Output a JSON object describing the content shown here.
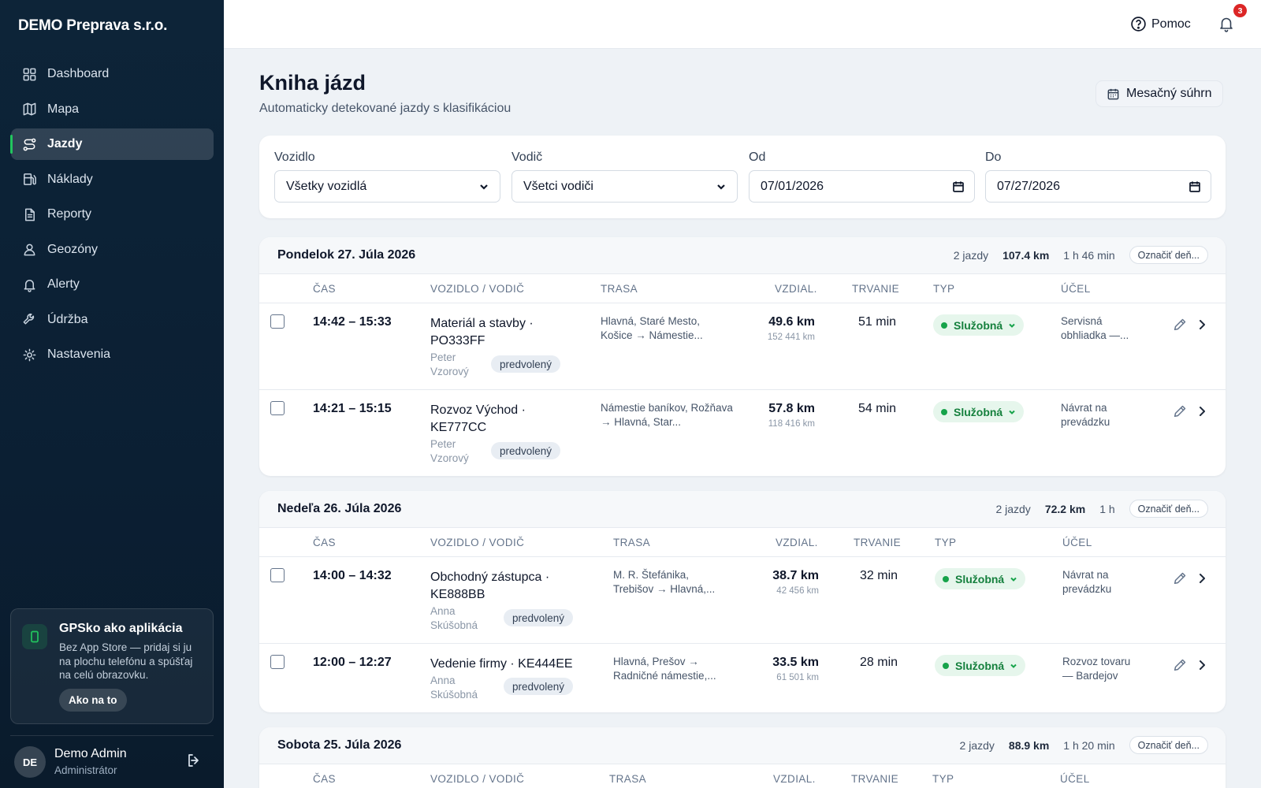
{
  "sidebar": {
    "brand": "DEMO Preprava s.r.o.",
    "items": [
      {
        "label": "Dashboard",
        "icon": "grid-icon"
      },
      {
        "label": "Mapa",
        "icon": "map-icon"
      },
      {
        "label": "Jazdy",
        "icon": "route-icon",
        "active": true
      },
      {
        "label": "Náklady",
        "icon": "fuel-icon"
      },
      {
        "label": "Reporty",
        "icon": "document-icon"
      },
      {
        "label": "Geozóny",
        "icon": "geofence-icon"
      },
      {
        "label": "Alerty",
        "icon": "bell-icon"
      },
      {
        "label": "Údržba",
        "icon": "wrench-icon"
      },
      {
        "label": "Nastavenia",
        "icon": "gear-icon"
      }
    ],
    "promo": {
      "title": "GPSko ako aplikácia",
      "text": "Bez App Store — pridaj si ju na plochu telefónu a spúšťaj na celú obrazovku.",
      "button": "Ako na to"
    },
    "user": {
      "initials": "DE",
      "name": "Demo Admin",
      "role": "Administrátor"
    }
  },
  "topbar": {
    "help": "Pomoc",
    "notifications": "3"
  },
  "page": {
    "title": "Kniha jázd",
    "subtitle": "Automaticky detekované jazdy s klasifikáciou",
    "summary_button": "Mesačný súhrn"
  },
  "filters": {
    "vehicle": {
      "label": "Vozidlo",
      "value": "Všetky vozidlá"
    },
    "driver": {
      "label": "Vodič",
      "value": "Všetci vodiči"
    },
    "from": {
      "label": "Od",
      "value": "07/01/2026"
    },
    "to": {
      "label": "Do",
      "value": "07/27/2026"
    }
  },
  "columns": [
    "ČAS",
    "VOZIDLO / VODIČ",
    "TRASA",
    "VZDIAL.",
    "TRVANIE",
    "TYP",
    "ÚČEL"
  ],
  "days": [
    {
      "title": "Pondelok 27. Júla 2026",
      "count": "2 jazdy",
      "km": "107.4 km",
      "duration": "1 h 46 min",
      "mark": "Označiť deň...",
      "trips": [
        {
          "time": "14:42 – 15:33",
          "vehicle": "Materiál a stavby · PO333FF",
          "driver": "Peter Vzorový",
          "badge": "predvolený",
          "route": "Hlavná, Staré Mesto, Košice → Námestie...",
          "distance": "49.6 km",
          "odometer": "152 441 km",
          "duration": "51 min",
          "type": "Služobná",
          "purpose": "Servisná obhliadka —..."
        },
        {
          "time": "14:21 – 15:15",
          "vehicle": "Rozvoz Východ · KE777CC",
          "driver": "Peter Vzorový",
          "badge": "predvolený",
          "route": "Námestie baníkov, Rožňava → Hlavná, Star...",
          "distance": "57.8 km",
          "odometer": "118 416 km",
          "duration": "54 min",
          "type": "Služobná",
          "purpose": "Návrat na prevádzku"
        }
      ]
    },
    {
      "title": "Nedeľa 26. Júla 2026",
      "count": "2 jazdy",
      "km": "72.2 km",
      "duration": "1 h",
      "mark": "Označiť deň...",
      "trips": [
        {
          "time": "14:00 – 14:32",
          "vehicle": "Obchodný zástupca · KE888BB",
          "driver": "Anna Skúšobná",
          "badge": "predvolený",
          "route": "M. R. Štefánika, Trebišov → Hlavná,...",
          "distance": "38.7 km",
          "odometer": "42 456 km",
          "duration": "32 min",
          "type": "Služobná",
          "purpose": "Návrat na prevádzku"
        },
        {
          "time": "12:00 – 12:27",
          "vehicle": "Vedenie firmy · KE444EE",
          "driver": "Anna Skúšobná",
          "badge": "predvolený",
          "route": "Hlavná, Prešov → Radničné námestie,...",
          "distance": "33.5 km",
          "odometer": "61 501 km",
          "duration": "28 min",
          "type": "Služobná",
          "purpose": "Rozvoz tovaru — Bardejov"
        }
      ]
    },
    {
      "title": "Sobota 25. Júla 2026",
      "count": "2 jazdy",
      "km": "88.9 km",
      "duration": "1 h 20 min",
      "mark": "Označiť deň...",
      "trips": []
    }
  ]
}
